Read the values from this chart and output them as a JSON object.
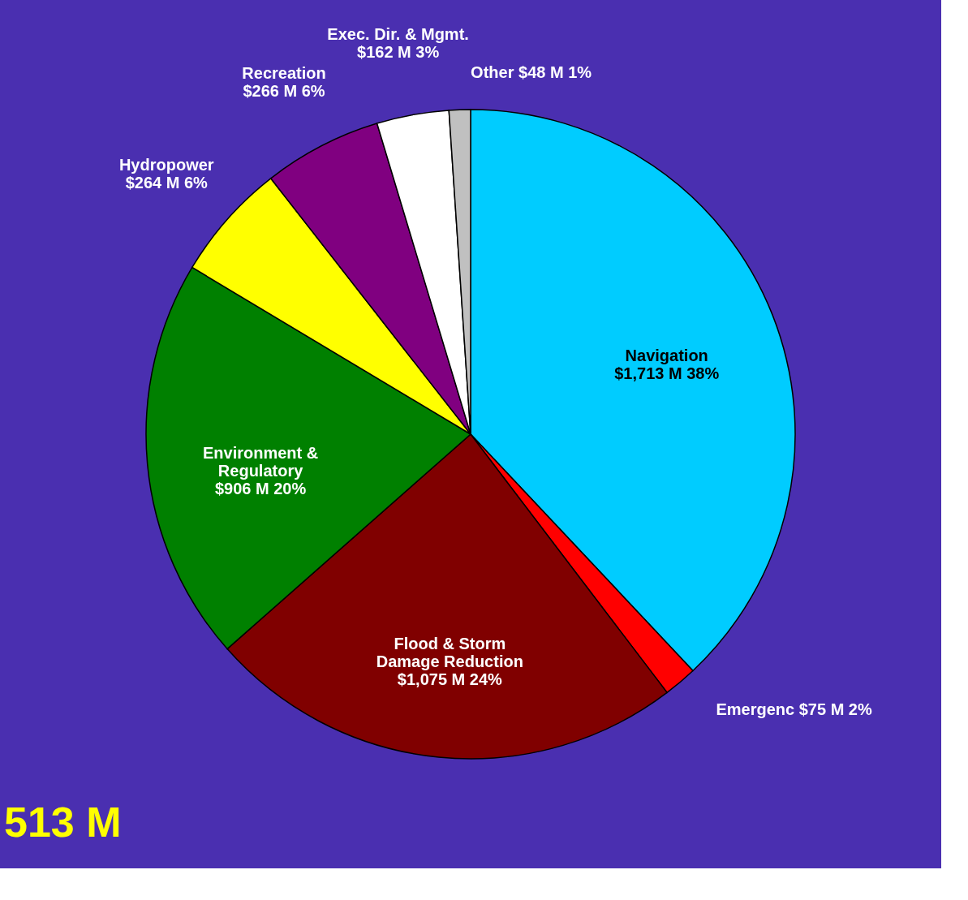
{
  "chart_data": {
    "type": "pie",
    "categories": [
      "Navigation",
      "Emergenc",
      "Flood & Storm Damage Reduction",
      "Environment & Regulatory",
      "Hydropower",
      "Recreation",
      "Exec. Dir. & Mgmt.",
      "Other"
    ],
    "values": [
      1713,
      75,
      1075,
      906,
      264,
      266,
      162,
      48
    ],
    "value_labels": [
      "$1,713 M 38%",
      "$75 M 2%",
      "$1,075 M 24%",
      "$906 M 20%",
      "$264 M 6%",
      "$266 M 6%",
      "$162 M 3%",
      "$48 M 1%"
    ],
    "colors": [
      "#00ccff",
      "#ff0000",
      "#800000",
      "#008000",
      "#ffff00",
      "#800080",
      "#ffffff",
      "#c0c0c0"
    ],
    "annotations": [
      "513 M"
    ]
  }
}
